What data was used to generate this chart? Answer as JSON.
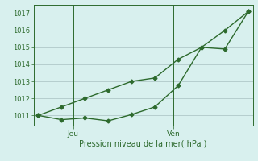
{
  "line1_x": [
    0,
    1,
    2,
    3,
    4,
    5,
    6,
    7,
    8,
    9
  ],
  "line1_y": [
    1011.0,
    1011.5,
    1012.0,
    1012.5,
    1013.0,
    1013.2,
    1014.3,
    1015.0,
    1016.0,
    1017.1
  ],
  "line2_x": [
    0,
    1,
    2,
    3,
    4,
    5,
    6,
    7,
    8,
    9
  ],
  "line2_y": [
    1011.0,
    1010.75,
    1010.85,
    1010.68,
    1011.05,
    1011.5,
    1012.75,
    1015.0,
    1014.9,
    1017.1
  ],
  "line_color": "#2d6a2d",
  "marker": "D",
  "markersize": 2.5,
  "linewidth": 1.0,
  "ylim": [
    1010.4,
    1017.5
  ],
  "yticks": [
    1011,
    1012,
    1013,
    1014,
    1015,
    1016,
    1017
  ],
  "xlim": [
    -0.2,
    9.2
  ],
  "jeu_x": 1.5,
  "ven_x": 5.8,
  "xlabel": "Pression niveau de la mer( hPa )",
  "background_color": "#d8f0ee",
  "grid_color": "#b0c8c8",
  "ylabel_fontsize": 6,
  "xlabel_fontsize": 7,
  "xtick_fontsize": 6.5
}
